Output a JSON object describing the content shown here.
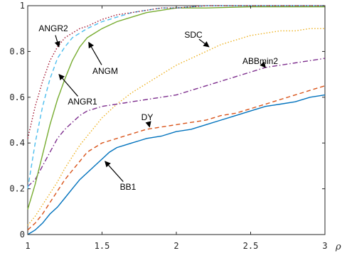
{
  "chart_data": {
    "type": "line",
    "xlabel": "ρ",
    "ylabel": "",
    "xlim": [
      1,
      3
    ],
    "ylim": [
      0,
      1
    ],
    "xticks": [
      1,
      1.5,
      2,
      2.5,
      3
    ],
    "xtick_labels": [
      "1",
      "1.5",
      "2",
      "2.5",
      "3"
    ],
    "yticks": [
      0,
      0.2,
      0.4,
      0.6,
      0.8,
      1
    ],
    "ytick_labels": [
      "0",
      "0.2",
      "0.4",
      "0.6",
      "0.8",
      "1"
    ],
    "grid": false,
    "series": [
      {
        "name": "BB1",
        "color": "#0072BD",
        "dash": "solid",
        "x": [
          1.0,
          1.05,
          1.1,
          1.15,
          1.2,
          1.25,
          1.3,
          1.35,
          1.4,
          1.45,
          1.5,
          1.55,
          1.6,
          1.65,
          1.7,
          1.75,
          1.8,
          1.9,
          2.0,
          2.1,
          2.2,
          2.3,
          2.4,
          2.5,
          2.6,
          2.7,
          2.8,
          2.9,
          3.0
        ],
        "y": [
          0.0,
          0.02,
          0.05,
          0.09,
          0.12,
          0.16,
          0.2,
          0.24,
          0.27,
          0.3,
          0.33,
          0.36,
          0.38,
          0.39,
          0.4,
          0.41,
          0.42,
          0.43,
          0.45,
          0.46,
          0.48,
          0.5,
          0.52,
          0.54,
          0.56,
          0.57,
          0.58,
          0.6,
          0.61
        ]
      },
      {
        "name": "DY",
        "color": "#D95319",
        "dash": "dashed",
        "x": [
          1.0,
          1.05,
          1.1,
          1.15,
          1.2,
          1.25,
          1.3,
          1.35,
          1.4,
          1.45,
          1.5,
          1.55,
          1.6,
          1.65,
          1.7,
          1.8,
          1.9,
          2.0,
          2.1,
          2.2,
          2.3,
          2.4,
          2.5,
          2.6,
          2.7,
          2.8,
          2.9,
          3.0
        ],
        "y": [
          0.02,
          0.05,
          0.09,
          0.14,
          0.19,
          0.24,
          0.28,
          0.32,
          0.36,
          0.38,
          0.4,
          0.41,
          0.42,
          0.43,
          0.44,
          0.46,
          0.47,
          0.48,
          0.49,
          0.5,
          0.52,
          0.53,
          0.55,
          0.57,
          0.59,
          0.61,
          0.63,
          0.65
        ]
      },
      {
        "name": "SDC",
        "color": "#EDB120",
        "dash": "dotted",
        "x": [
          1.0,
          1.05,
          1.1,
          1.15,
          1.2,
          1.25,
          1.3,
          1.35,
          1.4,
          1.45,
          1.5,
          1.55,
          1.6,
          1.7,
          1.8,
          1.9,
          2.0,
          2.1,
          2.2,
          2.3,
          2.4,
          2.5,
          2.6,
          2.7,
          2.8,
          2.9,
          3.0
        ],
        "y": [
          0.04,
          0.08,
          0.13,
          0.18,
          0.23,
          0.29,
          0.34,
          0.39,
          0.43,
          0.47,
          0.51,
          0.54,
          0.57,
          0.62,
          0.66,
          0.7,
          0.74,
          0.77,
          0.8,
          0.83,
          0.85,
          0.87,
          0.88,
          0.89,
          0.89,
          0.9,
          0.9
        ]
      },
      {
        "name": "ABBmin2",
        "color": "#7E2F8E",
        "dash": "dashdot",
        "x": [
          1.0,
          1.05,
          1.1,
          1.15,
          1.2,
          1.25,
          1.3,
          1.35,
          1.4,
          1.45,
          1.5,
          1.6,
          1.7,
          1.8,
          1.9,
          2.0,
          2.1,
          2.2,
          2.3,
          2.4,
          2.5,
          2.6,
          2.7,
          2.8,
          2.9,
          3.0
        ],
        "y": [
          0.21,
          0.24,
          0.3,
          0.36,
          0.42,
          0.46,
          0.49,
          0.52,
          0.54,
          0.55,
          0.56,
          0.57,
          0.58,
          0.59,
          0.6,
          0.61,
          0.63,
          0.65,
          0.67,
          0.69,
          0.71,
          0.73,
          0.74,
          0.75,
          0.76,
          0.77
        ]
      },
      {
        "name": "ANGM",
        "color": "#77AC30",
        "dash": "solid",
        "x": [
          1.0,
          1.05,
          1.1,
          1.15,
          1.2,
          1.25,
          1.3,
          1.35,
          1.4,
          1.45,
          1.5,
          1.6,
          1.7,
          1.8,
          1.9,
          2.0,
          2.2,
          2.5,
          3.0
        ],
        "y": [
          0.11,
          0.22,
          0.35,
          0.48,
          0.59,
          0.68,
          0.76,
          0.82,
          0.86,
          0.88,
          0.9,
          0.93,
          0.95,
          0.97,
          0.98,
          0.99,
          0.99,
          0.995,
          0.995
        ]
      },
      {
        "name": "ANGR1",
        "color": "#4DBEEE",
        "dash": "dashed",
        "x": [
          1.0,
          1.05,
          1.1,
          1.15,
          1.2,
          1.25,
          1.3,
          1.35,
          1.4,
          1.5,
          1.6,
          1.7,
          1.8,
          1.9,
          2.0,
          2.2,
          2.5,
          3.0
        ],
        "y": [
          0.2,
          0.4,
          0.56,
          0.68,
          0.77,
          0.82,
          0.86,
          0.88,
          0.9,
          0.93,
          0.95,
          0.97,
          0.98,
          0.99,
          0.99,
          1.0,
          1.0,
          1.0
        ]
      },
      {
        "name": "ANGR2",
        "color": "#A2142F",
        "dash": "dotted",
        "x": [
          1.0,
          1.05,
          1.1,
          1.15,
          1.2,
          1.25,
          1.3,
          1.35,
          1.4,
          1.5,
          1.6,
          1.7,
          1.8,
          1.9,
          2.0,
          2.2,
          2.5,
          3.0
        ],
        "y": [
          0.42,
          0.56,
          0.67,
          0.76,
          0.82,
          0.86,
          0.88,
          0.9,
          0.91,
          0.94,
          0.96,
          0.97,
          0.98,
          0.99,
          0.99,
          1.0,
          1.0,
          1.0
        ]
      }
    ],
    "annotations": [
      {
        "text": "ANGR2",
        "arrow_to": [
          1.21,
          0.82
        ]
      },
      {
        "text": "ANGR1",
        "arrow_to": [
          1.21,
          0.7
        ]
      },
      {
        "text": "ANGM",
        "arrow_to": [
          1.41,
          0.84
        ]
      },
      {
        "text": "SDC",
        "arrow_to": [
          2.22,
          0.82
        ]
      },
      {
        "text": "ABBmin2",
        "arrow_to": [
          2.6,
          0.73
        ]
      },
      {
        "text": "DY",
        "arrow_to": [
          1.82,
          0.47
        ]
      },
      {
        "text": "BB1",
        "arrow_to": [
          1.52,
          0.32
        ]
      }
    ]
  }
}
